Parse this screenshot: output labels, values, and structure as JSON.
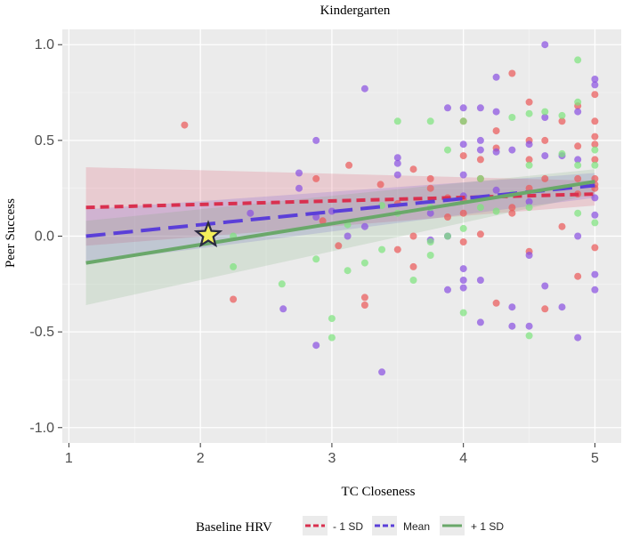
{
  "colors": {
    "panel": "#ebebeb",
    "grid_major": "#ffffff",
    "minus_1sd": "#d9304f",
    "mean": "#5b3fd8",
    "plus_1sd": "#6aa86a",
    "dot_red": "#ea5a5a",
    "dot_purple": "#8a52e0",
    "dot_green": "#7ee37e",
    "star_fill": "#f4ef5a",
    "star_stroke": "#2a2a40"
  },
  "chart_data": {
    "type": "scatter",
    "title": "Kindergarten",
    "xlabel": "TC Closeness",
    "ylabel": "Peer Success",
    "xlim": [
      0.95,
      5.2
    ],
    "ylim": [
      -1.08,
      1.08
    ],
    "xticks": [
      1,
      2,
      3,
      4,
      5
    ],
    "xtick_labels": [
      "1",
      "2",
      "3",
      "4",
      "5"
    ],
    "yticks": [
      -1.0,
      -0.5,
      0.0,
      0.5,
      1.0
    ],
    "ytick_labels": [
      "-1.0",
      "-0.5",
      "0.0",
      "0.5",
      "1.0"
    ],
    "grid": true,
    "legend": {
      "title": "Baseline HRV",
      "position": "bottom",
      "entries": [
        "- 1 SD",
        "Mean",
        "+ 1 SD"
      ]
    },
    "series": [
      {
        "name": "- 1 SD",
        "line": {
          "x": [
            1.13,
            5.0
          ],
          "y": [
            0.15,
            0.22
          ]
        },
        "ribbon_low": [
          -0.05,
          0.16
        ],
        "ribbon_high": [
          0.36,
          0.29
        ],
        "points": [
          [
            1.88,
            0.58
          ],
          [
            2.25,
            -0.33
          ],
          [
            2.88,
            0.3
          ],
          [
            2.93,
            0.08
          ],
          [
            3.05,
            -0.05
          ],
          [
            3.13,
            0.37
          ],
          [
            3.25,
            -0.32
          ],
          [
            3.25,
            -0.36
          ],
          [
            3.37,
            0.27
          ],
          [
            3.5,
            -0.07
          ],
          [
            3.62,
            -0.16
          ],
          [
            3.62,
            0.35
          ],
          [
            3.75,
            0.3
          ],
          [
            3.75,
            0.25
          ],
          [
            3.88,
            0.1
          ],
          [
            3.88,
            0.2
          ],
          [
            4.0,
            0.6
          ],
          [
            4.0,
            0.12
          ],
          [
            4.0,
            0.19
          ],
          [
            4.0,
            -0.03
          ],
          [
            4.13,
            0.3
          ],
          [
            4.13,
            0.01
          ],
          [
            4.25,
            0.55
          ],
          [
            4.25,
            0.46
          ],
          [
            4.25,
            -0.35
          ],
          [
            4.37,
            0.85
          ],
          [
            4.37,
            0.12
          ],
          [
            4.37,
            0.15
          ],
          [
            4.5,
            0.7
          ],
          [
            4.5,
            0.5
          ],
          [
            4.5,
            0.4
          ],
          [
            4.5,
            0.25
          ],
          [
            4.5,
            -0.08
          ],
          [
            4.62,
            0.5
          ],
          [
            4.62,
            0.3
          ],
          [
            4.62,
            -0.38
          ],
          [
            4.75,
            0.6
          ],
          [
            4.75,
            0.05
          ],
          [
            4.87,
            0.68
          ],
          [
            4.87,
            0.47
          ],
          [
            4.87,
            0.3
          ],
          [
            4.87,
            0.22
          ],
          [
            4.87,
            -0.21
          ],
          [
            5.0,
            0.74
          ],
          [
            5.0,
            0.6
          ],
          [
            5.0,
            0.52
          ],
          [
            5.0,
            0.48
          ],
          [
            5.0,
            0.4
          ],
          [
            5.0,
            0.3
          ],
          [
            5.0,
            0.27
          ],
          [
            5.0,
            0.25
          ],
          [
            5.0,
            -0.06
          ],
          [
            3.62,
            -0.0
          ],
          [
            3.5,
            0.17
          ],
          [
            4.0,
            0.42
          ],
          [
            4.13,
            0.4
          ]
        ]
      },
      {
        "name": "Mean",
        "line": {
          "x": [
            1.13,
            5.0
          ],
          "y": [
            0.0,
            0.265
          ]
        },
        "ribbon_low": [
          -0.14,
          0.2
        ],
        "ribbon_high": [
          0.14,
          0.33
        ],
        "points": [
          [
            2.38,
            0.12
          ],
          [
            2.63,
            -0.38
          ],
          [
            2.75,
            0.33
          ],
          [
            2.75,
            0.25
          ],
          [
            2.88,
            0.5
          ],
          [
            2.88,
            0.1
          ],
          [
            2.88,
            -0.57
          ],
          [
            3.0,
            0.13
          ],
          [
            3.12,
            0.0
          ],
          [
            3.25,
            0.77
          ],
          [
            3.25,
            0.05
          ],
          [
            3.38,
            -0.71
          ],
          [
            3.5,
            0.41
          ],
          [
            3.5,
            0.38
          ],
          [
            3.5,
            0.32
          ],
          [
            3.75,
            0.12
          ],
          [
            3.75,
            -0.02
          ],
          [
            3.88,
            0.67
          ],
          [
            3.88,
            -0.28
          ],
          [
            3.88,
            0.0
          ],
          [
            4.0,
            0.67
          ],
          [
            4.0,
            0.48
          ],
          [
            4.0,
            0.32
          ],
          [
            4.0,
            0.21
          ],
          [
            4.0,
            -0.17
          ],
          [
            4.0,
            -0.23
          ],
          [
            4.0,
            -0.27
          ],
          [
            4.13,
            0.67
          ],
          [
            4.13,
            0.5
          ],
          [
            4.13,
            0.45
          ],
          [
            4.13,
            -0.23
          ],
          [
            4.13,
            -0.45
          ],
          [
            4.25,
            0.83
          ],
          [
            4.25,
            0.65
          ],
          [
            4.25,
            0.44
          ],
          [
            4.25,
            0.24
          ],
          [
            4.37,
            0.45
          ],
          [
            4.37,
            -0.47
          ],
          [
            4.37,
            -0.37
          ],
          [
            4.5,
            0.48
          ],
          [
            4.5,
            0.18
          ],
          [
            4.5,
            -0.1
          ],
          [
            4.5,
            -0.47
          ],
          [
            4.62,
            1.0
          ],
          [
            4.62,
            0.62
          ],
          [
            4.62,
            0.42
          ],
          [
            4.62,
            -0.26
          ],
          [
            4.75,
            0.42
          ],
          [
            4.75,
            -0.37
          ],
          [
            4.87,
            0.65
          ],
          [
            4.87,
            0.4
          ],
          [
            4.87,
            0.0
          ],
          [
            4.87,
            -0.53
          ],
          [
            5.0,
            0.82
          ],
          [
            5.0,
            0.79
          ],
          [
            5.0,
            0.2
          ],
          [
            5.0,
            0.11
          ],
          [
            5.0,
            -0.2
          ],
          [
            5.0,
            -0.28
          ]
        ]
      },
      {
        "name": "+ 1 SD",
        "line": {
          "x": [
            1.13,
            5.0
          ],
          "y": [
            -0.14,
            0.285
          ]
        },
        "ribbon_low": [
          -0.36,
          0.22
        ],
        "ribbon_high": [
          0.08,
          0.35
        ],
        "points": [
          [
            2.25,
            -0.16
          ],
          [
            2.25,
            -0.0
          ],
          [
            2.62,
            -0.25
          ],
          [
            2.88,
            -0.12
          ],
          [
            3.0,
            -0.43
          ],
          [
            3.0,
            -0.53
          ],
          [
            3.12,
            -0.18
          ],
          [
            3.12,
            0.06
          ],
          [
            3.25,
            -0.14
          ],
          [
            3.38,
            -0.07
          ],
          [
            3.38,
            0.16
          ],
          [
            3.5,
            0.6
          ],
          [
            3.5,
            0.12
          ],
          [
            3.62,
            -0.23
          ],
          [
            3.75,
            0.6
          ],
          [
            3.75,
            0.15
          ],
          [
            3.75,
            -0.03
          ],
          [
            3.75,
            -0.1
          ],
          [
            3.88,
            0.45
          ],
          [
            3.88,
            0.0
          ],
          [
            4.0,
            0.6
          ],
          [
            4.0,
            0.04
          ],
          [
            4.0,
            -0.4
          ],
          [
            4.13,
            0.15
          ],
          [
            4.25,
            0.13
          ],
          [
            4.37,
            0.22
          ],
          [
            4.5,
            0.64
          ],
          [
            4.5,
            0.37
          ],
          [
            4.5,
            0.15
          ],
          [
            4.5,
            -0.52
          ],
          [
            4.62,
            0.65
          ],
          [
            4.75,
            0.43
          ],
          [
            4.75,
            0.63
          ],
          [
            4.87,
            0.92
          ],
          [
            4.87,
            0.7
          ],
          [
            4.87,
            0.37
          ],
          [
            4.87,
            0.12
          ],
          [
            5.0,
            0.45
          ],
          [
            5.0,
            0.37
          ],
          [
            5.0,
            0.07
          ],
          [
            4.37,
            0.62
          ],
          [
            4.13,
            0.3
          ]
        ]
      }
    ],
    "highlight_point": {
      "x": 2.06,
      "y": 0.005,
      "marker": "star"
    }
  }
}
